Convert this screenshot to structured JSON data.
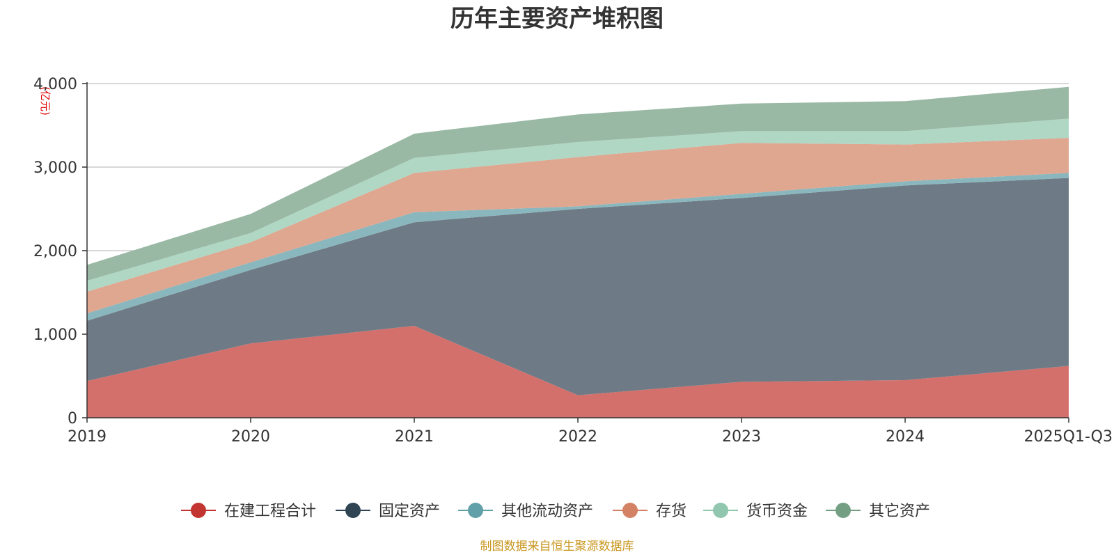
{
  "chart_data": {
    "type": "area",
    "stacked": true,
    "title": "历年主要资产堆积图",
    "unit_label": "(亿元)",
    "categories": [
      "2019",
      "2020",
      "2021",
      "2022",
      "2023",
      "2024",
      "2025Q1-Q3"
    ],
    "ylim": [
      0,
      4000
    ],
    "yticks": [
      0,
      1000,
      2000,
      3000,
      4000
    ],
    "ytick_labels": [
      "0",
      "1,000",
      "2,000",
      "3,000",
      "4,000"
    ],
    "grid": true,
    "legend_position": "bottom-center",
    "series": [
      {
        "name": "在建工程合计",
        "color": "#c23531",
        "fill": "#d4706c",
        "values": [
          440,
          890,
          1100,
          270,
          430,
          450,
          620
        ]
      },
      {
        "name": "固定资产",
        "color": "#2f4554",
        "fill": "#6e7b86",
        "values": [
          720,
          880,
          1240,
          2230,
          2200,
          2330,
          2250
        ]
      },
      {
        "name": "其他流动资产",
        "color": "#61a0a8",
        "fill": "#8ab7bd",
        "values": [
          90,
          90,
          120,
          30,
          50,
          50,
          60
        ]
      },
      {
        "name": "存货",
        "color": "#d48265",
        "fill": "#dfa690",
        "values": [
          260,
          240,
          470,
          590,
          610,
          440,
          420
        ]
      },
      {
        "name": "货币资金",
        "color": "#91c7ae",
        "fill": "#afd7c4",
        "values": [
          130,
          110,
          180,
          180,
          140,
          160,
          230
        ]
      },
      {
        "name": "其它资产",
        "color": "#749f83",
        "fill": "#9ab9a5",
        "values": [
          190,
          230,
          290,
          330,
          330,
          360,
          380
        ]
      }
    ],
    "source_note": "制图数据来自恒生聚源数据库"
  }
}
